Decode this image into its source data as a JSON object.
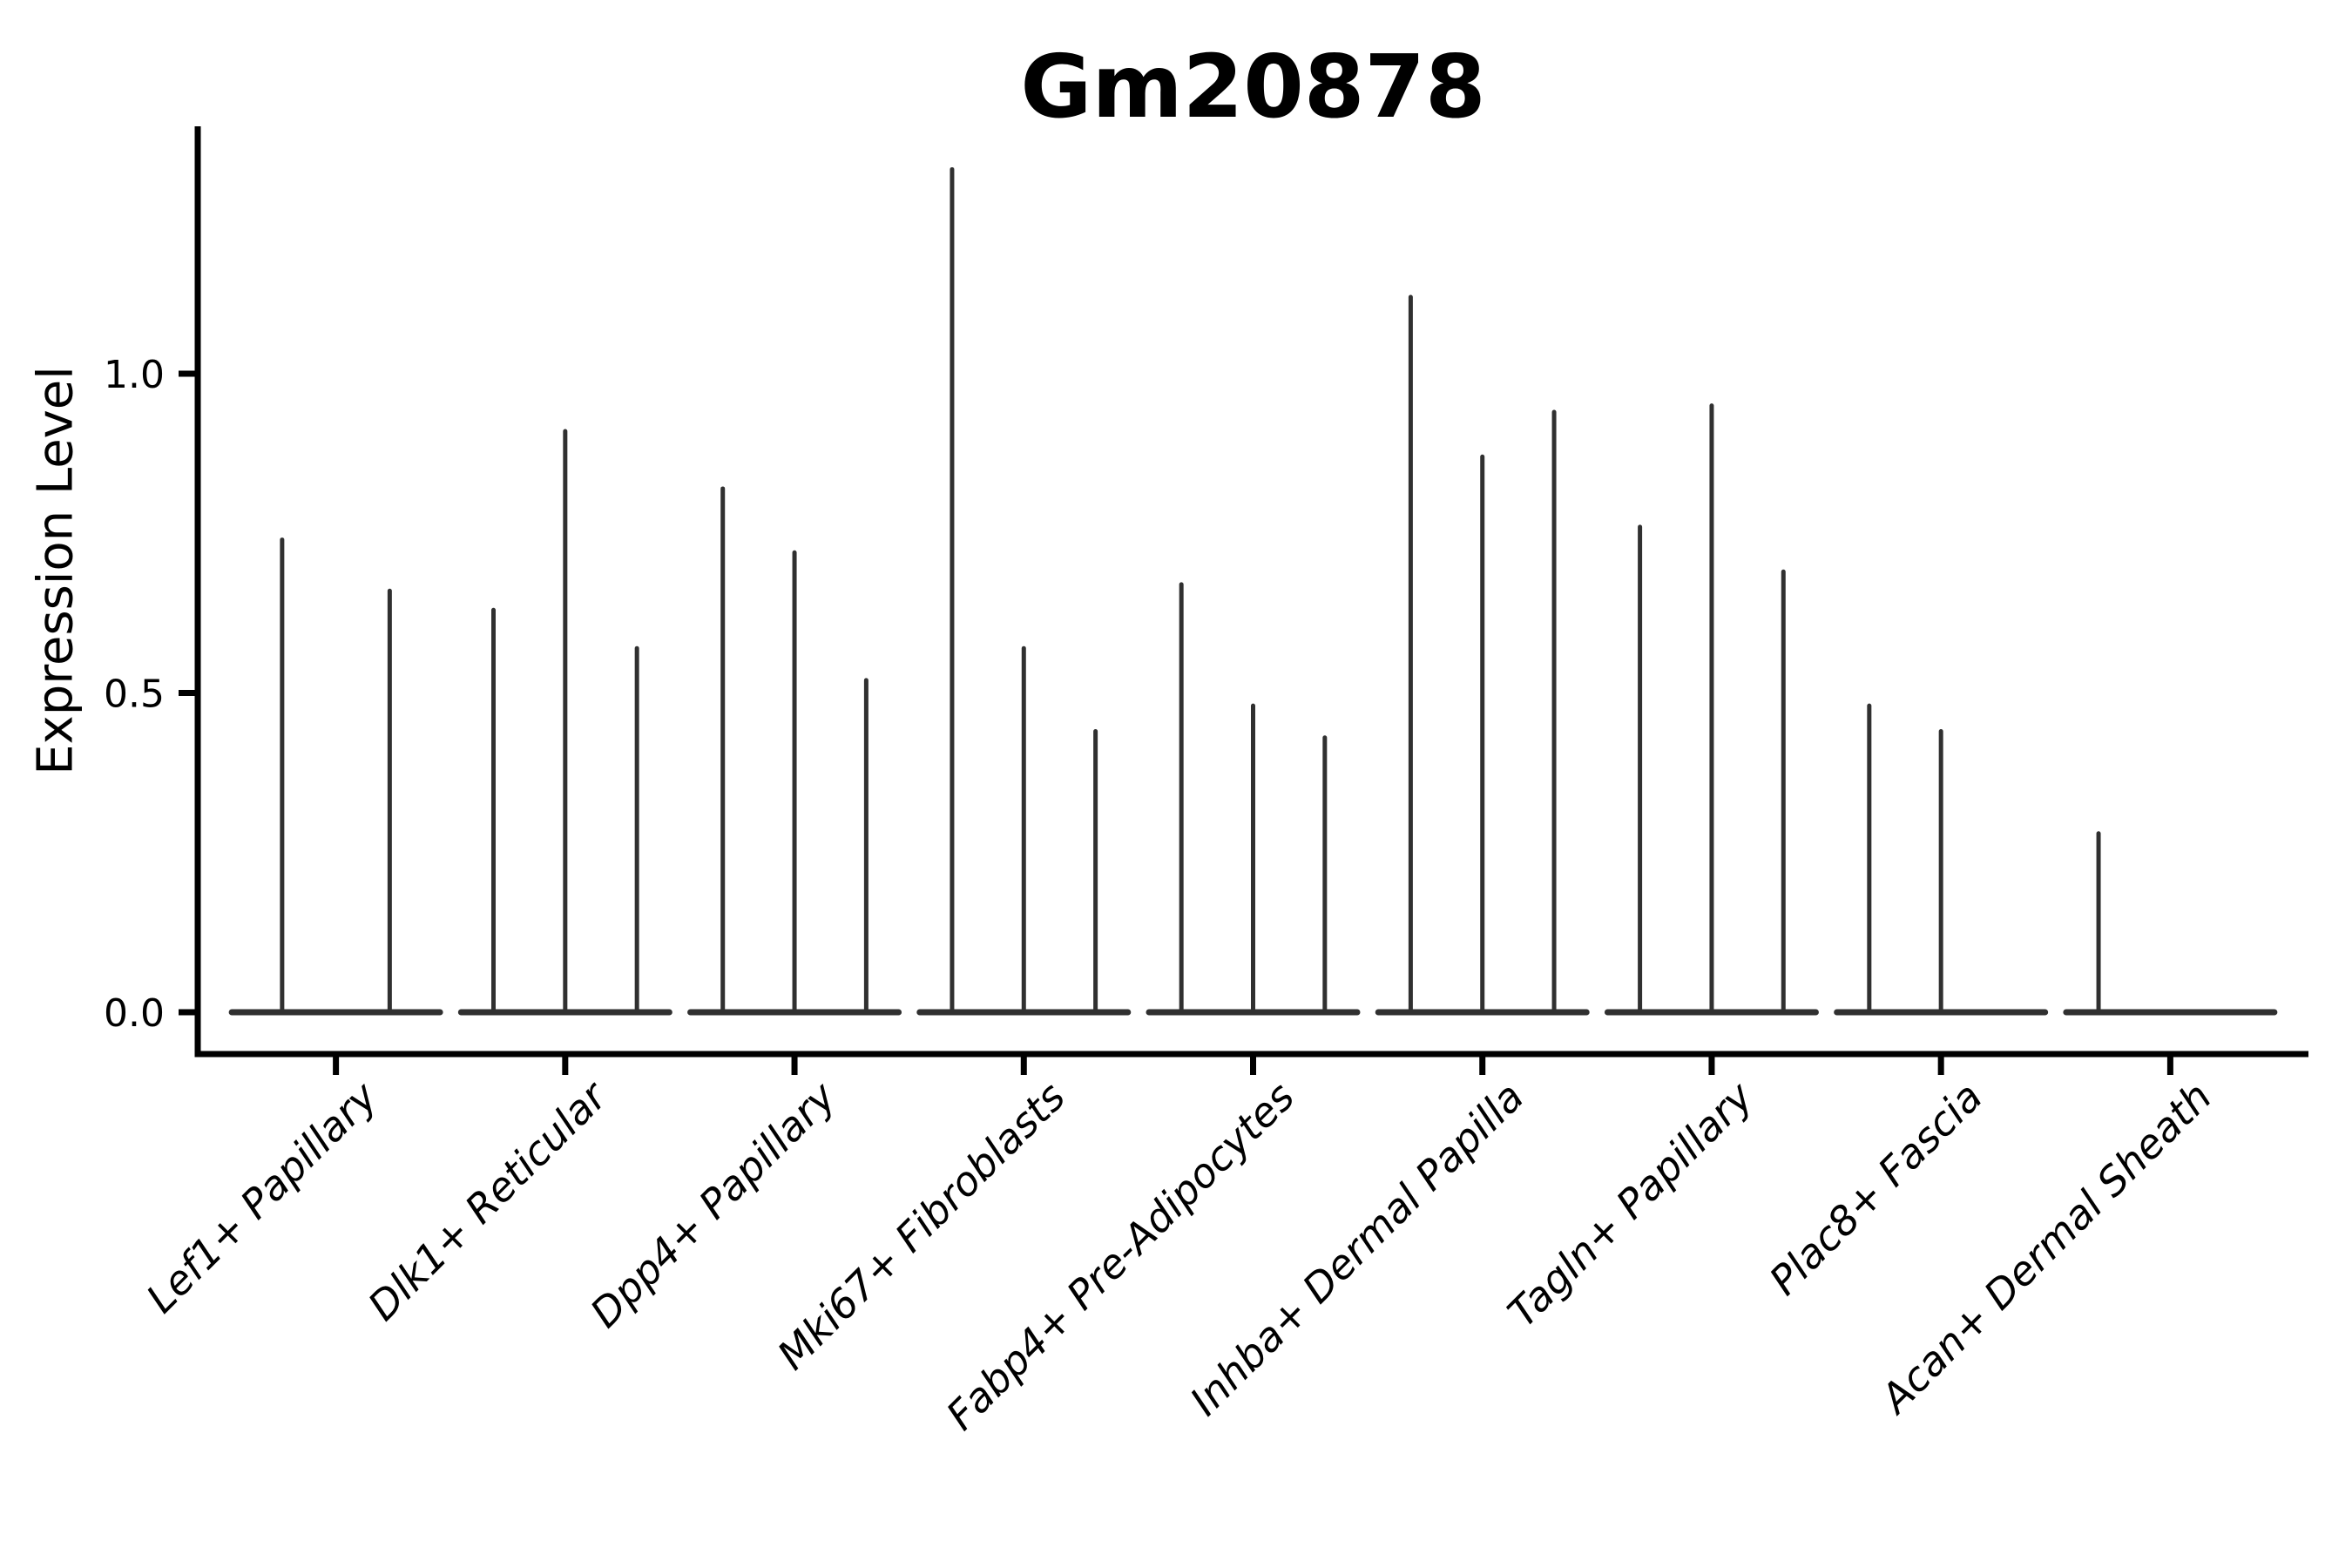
{
  "figure": {
    "background": "#ffffff"
  },
  "chart_data": {
    "type": "violin",
    "title": "Gm20878",
    "xlabel": "",
    "ylabel": "Expression Level",
    "ylim": [
      -0.07,
      1.39
    ],
    "grid": false,
    "legend": "none",
    "yticks": [
      {
        "label": "0.0",
        "value": 0.0
      },
      {
        "label": "0.5",
        "value": 0.5
      },
      {
        "label": "1.0",
        "value": 1.0
      }
    ],
    "categories": [
      "Lef1+ Papillary",
      "Dlk1+ Reticular",
      "Dpp4+ Papillary",
      "Mki67+ Fibroblasts",
      "Fabp4+ Pre-Adipocytes",
      "Inhba+ Dermal Papilla",
      "Tagln+ Papillary",
      "Plac8+ Fascia",
      "Acan+ Dermal Sheath"
    ],
    "groups": [
      {
        "label": "Lef1+ Papillary",
        "violin_peaks": [
          0.74,
          0.66
        ]
      },
      {
        "label": "Dlk1+ Reticular",
        "violin_peaks": [
          0.63,
          0.91,
          0.57
        ]
      },
      {
        "label": "Dpp4+ Papillary",
        "violin_peaks": [
          0.82,
          0.72,
          0.52
        ]
      },
      {
        "label": "Mki67+ Fibroblasts",
        "violin_peaks": [
          1.32,
          0.57,
          0.44
        ]
      },
      {
        "label": "Fabp4+ Pre-Adipocytes",
        "violin_peaks": [
          0.67,
          0.48,
          0.43
        ]
      },
      {
        "label": "Inhba+ Dermal Papilla",
        "violin_peaks": [
          1.12,
          0.87,
          0.94
        ]
      },
      {
        "label": "Tagln+ Papillary",
        "violin_peaks": [
          0.76,
          0.95,
          0.69
        ]
      },
      {
        "label": "Plac8+ Fascia",
        "violin_peaks": [
          0.48,
          0.44,
          0.0
        ]
      },
      {
        "label": "Acan+ Dermal Sheath",
        "violin_peaks": [
          0.28,
          0.0,
          0.0
        ]
      }
    ],
    "colors": {
      "axis": "#000000",
      "text": "#000000",
      "violin": "#303030",
      "background": "#ffffff"
    }
  }
}
